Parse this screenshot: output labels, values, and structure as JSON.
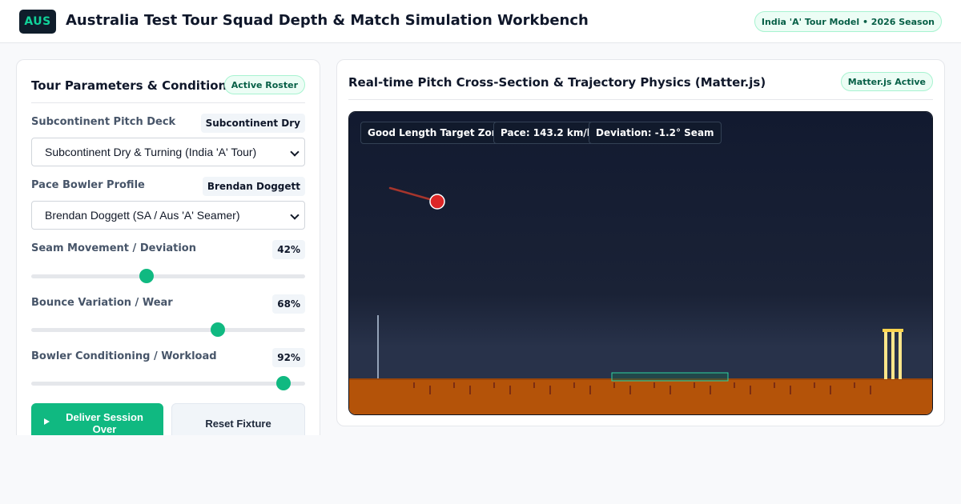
{
  "header": {
    "logo_text": "AUS",
    "title": "Australia Test Tour Squad Depth & Match Simulation Workbench",
    "season_badge": "India 'A' Tour Model • 2026 Season"
  },
  "left_panel": {
    "title": "Tour Parameters & Conditions",
    "badge": "Active Roster",
    "pitch": {
      "label": "Subcontinent Pitch Deck",
      "value_chip": "Subcontinent Dry",
      "selected": "Subcontinent Dry & Turning (India 'A' Tour)"
    },
    "bowler": {
      "label": "Pace Bowler Profile",
      "value_chip": "Brendan Doggett",
      "selected": "Brendan Doggett (SA / Aus 'A' Seamer)"
    },
    "sliders": [
      {
        "label": "Seam Movement / Deviation",
        "display": "42%",
        "value": 42
      },
      {
        "label": "Bounce Variation / Wear",
        "display": "68%",
        "value": 68
      },
      {
        "label": "Bowler Conditioning / Workload",
        "display": "92%",
        "value": 92
      }
    ],
    "buttons": {
      "primary": "Deliver Session Over",
      "secondary": "Reset Fixture"
    }
  },
  "right_panel": {
    "title": "Real-time Pitch Cross-Section & Trajectory Physics (Matter.js)",
    "badge": "Matter.js Active",
    "hud": {
      "zone": "Good Length Target Zone",
      "pace": "Pace: 143.2 km/h",
      "deviation": "Deviation: -1.2° Seam"
    }
  },
  "colors": {
    "accent": "#10b981",
    "canvas_sky": "#141c33",
    "pitch_soil": "#b45309",
    "ball": "#dc2626",
    "stumps": "#fde68a"
  }
}
